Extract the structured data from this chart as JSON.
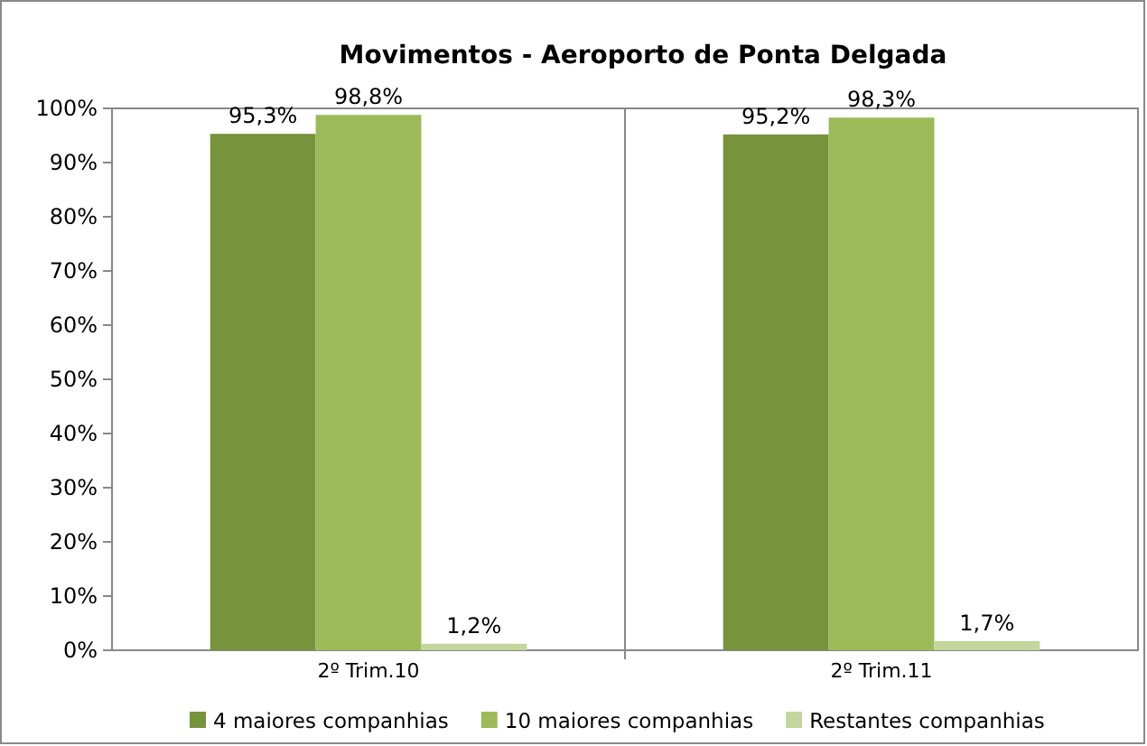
{
  "chart_data": {
    "type": "bar",
    "title": "Movimentos - Aeroporto de Ponta Delgada",
    "categories": [
      "2º Trim.10",
      "2º Trim.11"
    ],
    "series": [
      {
        "name": "4 maiores companhias",
        "color": "#77933c",
        "values": [
          95.3,
          95.2
        ],
        "value_labels": [
          "95,3%",
          "95,2%"
        ]
      },
      {
        "name": "10 maiores companhias",
        "color": "#9bbb59",
        "values": [
          98.8,
          98.3
        ],
        "value_labels": [
          "98,8%",
          "98,3%"
        ]
      },
      {
        "name": "Restantes companhias",
        "color": "#c3d69b",
        "values": [
          1.2,
          1.7
        ],
        "value_labels": [
          "1,2%",
          "1,7%"
        ]
      }
    ],
    "ylim": [
      0,
      100
    ],
    "yticks": [
      {
        "value": 0,
        "label": "0%"
      },
      {
        "value": 10,
        "label": "10%"
      },
      {
        "value": 20,
        "label": "20%"
      },
      {
        "value": 30,
        "label": "30%"
      },
      {
        "value": 40,
        "label": "40%"
      },
      {
        "value": 50,
        "label": "50%"
      },
      {
        "value": 60,
        "label": "60%"
      },
      {
        "value": 70,
        "label": "70%"
      },
      {
        "value": 80,
        "label": "80%"
      },
      {
        "value": 90,
        "label": "90%"
      },
      {
        "value": 100,
        "label": "100%"
      }
    ],
    "grid": false,
    "legend": "bottom"
  }
}
